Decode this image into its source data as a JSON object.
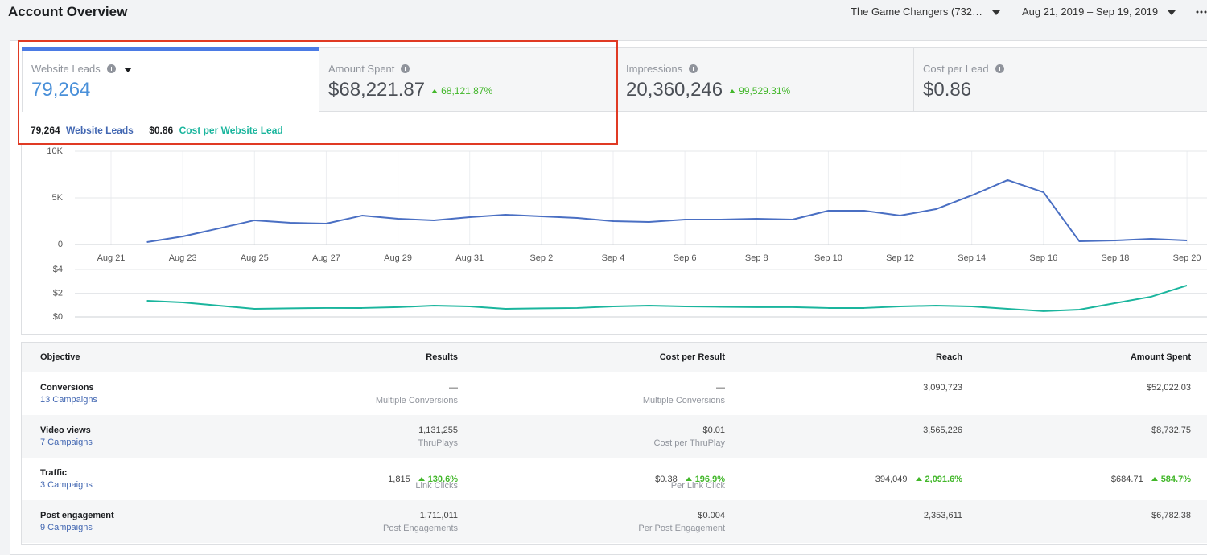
{
  "header": {
    "title": "Account Overview",
    "account": "The Game Changers (732…",
    "date_range": "Aug 21, 2019 – Sep 19, 2019"
  },
  "metrics": [
    {
      "label": "Website Leads",
      "value": "79,264"
    },
    {
      "label": "Amount Spent",
      "value": "$68,221.87",
      "change": "68,121.87%"
    },
    {
      "label": "Impressions",
      "value": "20,360,246",
      "change": "99,529.31%"
    },
    {
      "label": "Cost per Lead",
      "value": "$0.86"
    }
  ],
  "summary": {
    "leads_value": "79,264",
    "leads_label": "Website Leads",
    "cost_value": "$0.86",
    "cost_label": "Cost per Website Lead"
  },
  "chart_data": [
    {
      "type": "line",
      "categories": [
        "Aug 21",
        null,
        "Aug 23",
        null,
        "Aug 25",
        null,
        "Aug 27",
        null,
        "Aug 29",
        null,
        "Aug 31",
        null,
        "Sep 2",
        null,
        "Sep 4",
        null,
        "Sep 6",
        null,
        "Sep 8",
        null,
        "Sep 10",
        null,
        "Sep 12",
        null,
        "Sep 14",
        null,
        "Sep 16",
        null,
        "Sep 18",
        null,
        "Sep 20"
      ],
      "values": [
        null,
        260,
        860,
        1720,
        2590,
        2330,
        2240,
        3100,
        2760,
        2590,
        2930,
        3190,
        3020,
        2840,
        2500,
        2410,
        2670,
        2670,
        2760,
        2670,
        3620,
        3620,
        3100,
        3790,
        5260,
        6900,
        5600,
        340,
        430,
        600,
        430
      ],
      "color": "#4a6fc3",
      "ylim": [
        0,
        10000
      ],
      "yticks": [
        0,
        {
          "value": 5000,
          "label": "5K"
        },
        {
          "value": 10000,
          "label": "10K"
        }
      ],
      "grid": true
    },
    {
      "type": "line",
      "values": [
        null,
        1.36,
        1.22,
        0.95,
        0.68,
        0.72,
        0.75,
        0.75,
        0.82,
        0.95,
        0.88,
        0.68,
        0.72,
        0.75,
        0.88,
        0.95,
        0.88,
        0.85,
        0.82,
        0.82,
        0.75,
        0.75,
        0.88,
        0.95,
        0.88,
        0.68,
        0.48,
        0.61,
        1.16,
        1.7,
        2.65
      ],
      "color": "#1ab59d",
      "ylim": [
        0,
        4
      ],
      "yticks": [
        {
          "value": 0,
          "label": "$0"
        },
        {
          "value": 2,
          "label": "$2"
        },
        {
          "value": 4,
          "label": "$4"
        }
      ],
      "grid": true
    }
  ],
  "table": {
    "headers": [
      "Objective",
      "Results",
      "Cost per Result",
      "Reach",
      "Amount Spent"
    ],
    "rows": [
      {
        "objective": "Conversions",
        "campaigns": "13 Campaigns",
        "results": "—",
        "results_note": "Multiple Conversions",
        "cost": "—",
        "cost_note": "Multiple Conversions",
        "reach": "3,090,723",
        "spent": "$52,022.03"
      },
      {
        "objective": "Video views",
        "campaigns": "7 Campaigns",
        "results": "1,131,255",
        "results_note": "ThruPlays",
        "cost": "$0.01",
        "cost_note": "Cost per ThruPlay",
        "reach": "3,565,226",
        "spent": "$8,732.75"
      },
      {
        "objective": "Traffic",
        "campaigns": "3 Campaigns",
        "results": "1,815",
        "results_change": "130.6%",
        "results_note": "Link Clicks",
        "cost": "$0.38",
        "cost_change": "196.9%",
        "cost_note": "Per Link Click",
        "reach": "394,049",
        "reach_change": "2,091.6%",
        "spent": "$684.71",
        "spent_change": "584.7%"
      },
      {
        "objective": "Post engagement",
        "campaigns": "9 Campaigns",
        "results": "1,711,011",
        "results_note": "Post Engagements",
        "cost": "$0.004",
        "cost_note": "Per Post Engagement",
        "reach": "2,353,611",
        "spent": "$6,782.38"
      }
    ]
  }
}
